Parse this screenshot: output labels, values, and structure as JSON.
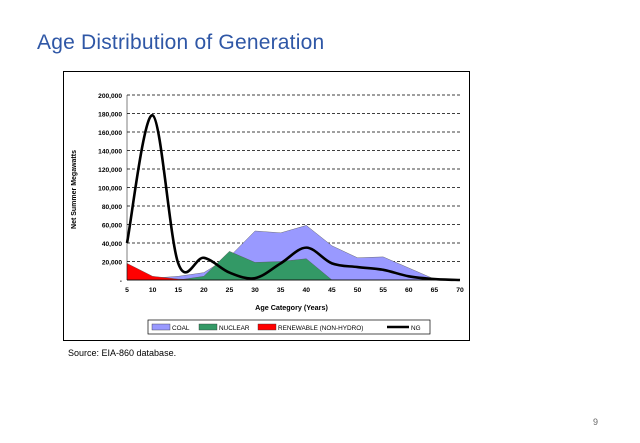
{
  "slide": {
    "title": "Age Distribution of Generation",
    "source": "Source: EIA-860 database.",
    "page_number": "9"
  },
  "colors": {
    "title": "#2f57a6",
    "coal": "#9999ff",
    "nuclear": "#339966",
    "renewable": "#ff0000",
    "ng": "#000000"
  },
  "chart_data": {
    "type": "area",
    "xlabel": "Age Category (Years)",
    "ylabel": "Net Summer Megawatts",
    "x": [
      5,
      10,
      15,
      20,
      25,
      30,
      35,
      40,
      45,
      50,
      55,
      60,
      65,
      70
    ],
    "ylim": [
      0,
      200000
    ],
    "xlim": [
      5,
      70
    ],
    "yticks": [
      0,
      20000,
      40000,
      60000,
      80000,
      100000,
      120000,
      140000,
      160000,
      180000,
      200000
    ],
    "ytick_labels": [
      "-",
      "20,000",
      "40,000",
      "60,000",
      "80,000",
      "100,000",
      "120,000",
      "140,000",
      "160,000",
      "180,000",
      "200,000"
    ],
    "xtick_labels": [
      "5",
      "10",
      "15",
      "20",
      "25",
      "30",
      "35",
      "40",
      "45",
      "50",
      "55",
      "60",
      "65",
      "70"
    ],
    "grid": "horizontal dashed",
    "legend_position": "bottom",
    "series": [
      {
        "name": "COAL",
        "kind": "area",
        "values": [
          500,
          2000,
          4000,
          8000,
          25000,
          53000,
          51000,
          59000,
          37000,
          24000,
          25000,
          13000,
          1000,
          0
        ]
      },
      {
        "name": "NUCLEAR",
        "kind": "area",
        "values": [
          0,
          0,
          0,
          4000,
          31000,
          19000,
          20000,
          23000,
          0,
          0,
          0,
          0,
          0,
          0
        ]
      },
      {
        "name": "RENEWABLE (NON-HYDRO)",
        "kind": "area",
        "values": [
          18000,
          4000,
          1000,
          0,
          0,
          0,
          0,
          0,
          0,
          0,
          0,
          0,
          0,
          0
        ]
      },
      {
        "name": "NG",
        "kind": "line",
        "values": [
          40000,
          178000,
          18000,
          24000,
          8000,
          2000,
          18000,
          35000,
          18000,
          14000,
          11000,
          4000,
          1000,
          0
        ]
      }
    ]
  }
}
